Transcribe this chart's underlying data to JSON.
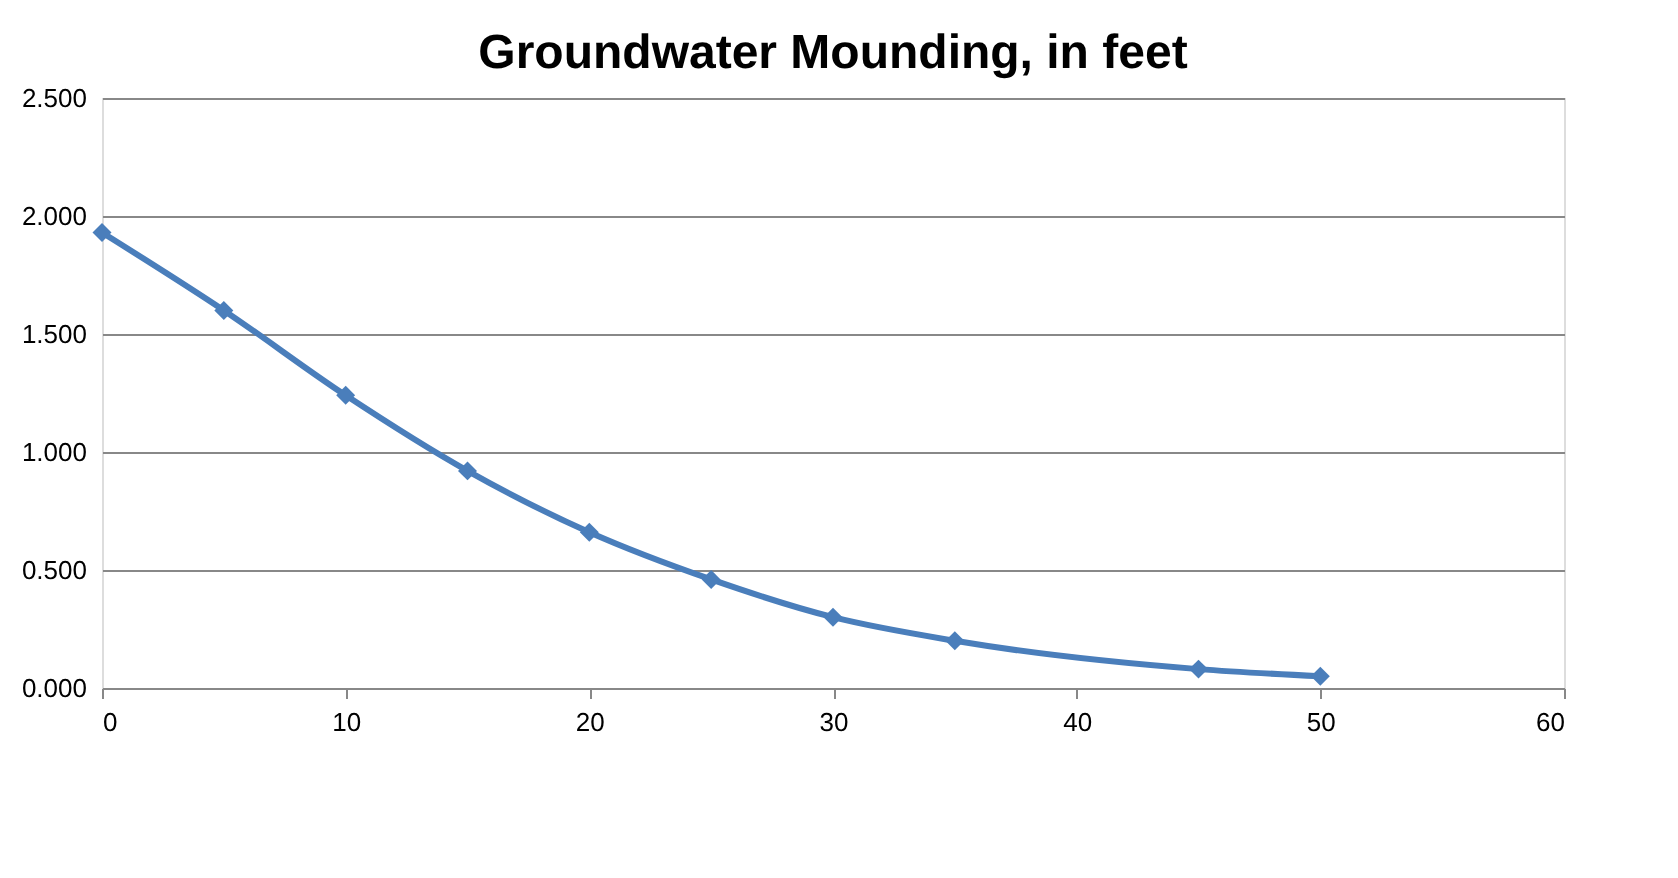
{
  "chart_data": {
    "type": "line",
    "title": "Groundwater Mounding, in feet",
    "x": [
      0,
      5,
      10,
      15,
      20,
      25,
      30,
      35,
      45,
      50
    ],
    "series": [
      {
        "color": "#4a7ebb",
        "values": [
          1.93,
          1.6,
          1.24,
          0.92,
          0.66,
          0.46,
          0.3,
          0.2,
          0.08,
          0.05
        ]
      }
    ],
    "xlim": [
      0,
      60
    ],
    "xticks": [
      0,
      10,
      20,
      30,
      40,
      50,
      60
    ],
    "ylim": [
      0,
      2.5
    ],
    "yticks": [
      {
        "value": 0,
        "label": "0.000"
      },
      {
        "value": 0.5,
        "label": "0.500"
      },
      {
        "value": 1,
        "label": "1.000"
      },
      {
        "value": 1.5,
        "label": "1.500"
      },
      {
        "value": 2,
        "label": "2.000"
      },
      {
        "value": 2.5,
        "label": "2.500"
      }
    ],
    "grid": "y",
    "marker": "diamond",
    "line_style": "solid"
  }
}
